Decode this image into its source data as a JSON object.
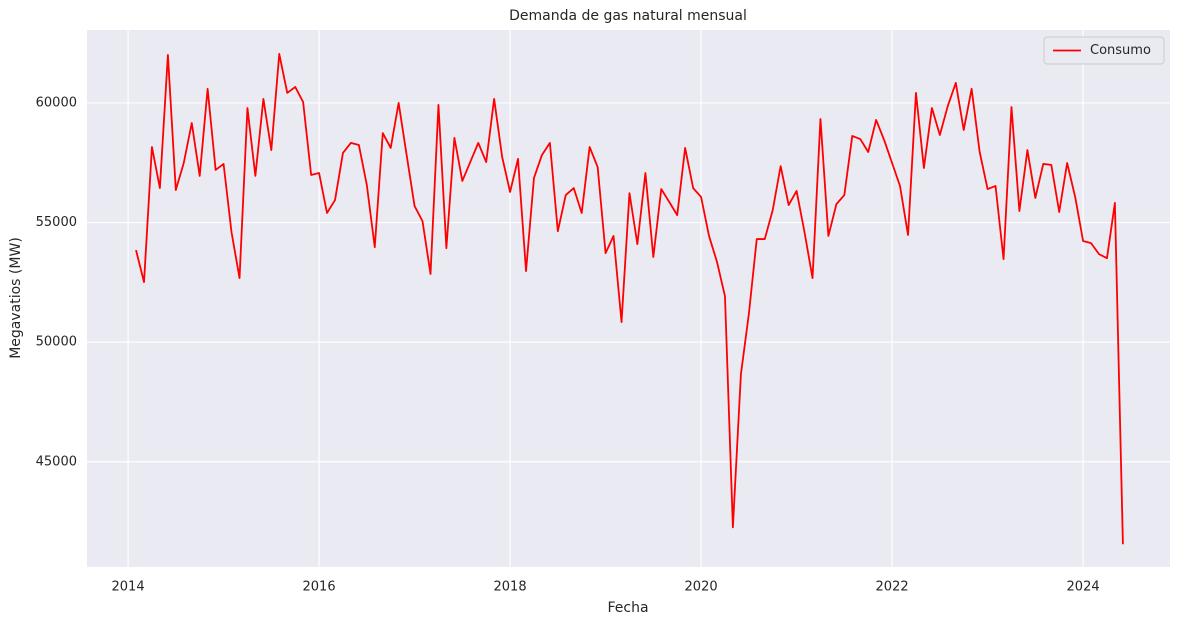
{
  "chart_data": {
    "type": "line",
    "title": "Demanda de gas natural mensual",
    "x_label": "Fecha",
    "y_label": "Megavatios (MW)",
    "x": [
      2014.083,
      2014.167,
      2014.25,
      2014.333,
      2014.417,
      2014.5,
      2014.583,
      2014.667,
      2014.75,
      2014.833,
      2014.917,
      2015.0,
      2015.083,
      2015.167,
      2015.25,
      2015.333,
      2015.417,
      2015.5,
      2015.583,
      2015.667,
      2015.75,
      2015.833,
      2015.917,
      2016.0,
      2016.083,
      2016.167,
      2016.25,
      2016.333,
      2016.417,
      2016.5,
      2016.583,
      2016.667,
      2016.75,
      2016.833,
      2016.917,
      2017.0,
      2017.083,
      2017.167,
      2017.25,
      2017.333,
      2017.417,
      2017.5,
      2017.583,
      2017.667,
      2017.75,
      2017.833,
      2017.917,
      2018.0,
      2018.083,
      2018.167,
      2018.25,
      2018.333,
      2018.417,
      2018.5,
      2018.583,
      2018.667,
      2018.75,
      2018.833,
      2018.917,
      2019.0,
      2019.083,
      2019.167,
      2019.25,
      2019.333,
      2019.417,
      2019.5,
      2019.583,
      2019.667,
      2019.75,
      2019.833,
      2019.917,
      2020.0,
      2020.083,
      2020.167,
      2020.25,
      2020.333,
      2020.417,
      2020.5,
      2020.583,
      2020.667,
      2020.75,
      2020.833,
      2020.917,
      2021.0,
      2021.083,
      2021.167,
      2021.25,
      2021.333,
      2021.417,
      2021.5,
      2021.583,
      2021.667,
      2021.75,
      2021.833,
      2021.917,
      2022.0,
      2022.083,
      2022.167,
      2022.25,
      2022.333,
      2022.417,
      2022.5,
      2022.583,
      2022.667,
      2022.75,
      2022.833,
      2022.917,
      2023.0,
      2023.083,
      2023.167,
      2023.25,
      2023.333,
      2023.417,
      2023.5,
      2023.583,
      2023.667,
      2023.75,
      2023.833,
      2023.917,
      2024.0,
      2024.083,
      2024.167,
      2024.25,
      2024.333,
      2024.417
    ],
    "series": [
      {
        "name": "Consumo",
        "color": "#ff0000",
        "values": [
          53850,
          52510,
          58160,
          56440,
          62010,
          56360,
          57490,
          59160,
          56950,
          60590,
          57200,
          57450,
          54600,
          52680,
          59790,
          56950,
          60170,
          58030,
          62050,
          60420,
          60670,
          60040,
          56990,
          57070,
          55400,
          55940,
          57910,
          58330,
          58240,
          56570,
          53970,
          58740,
          58120,
          60000,
          57820,
          55690,
          55060,
          52850,
          59920,
          53930,
          58540,
          56740,
          57530,
          58330,
          57530,
          60170,
          57740,
          56280,
          57660,
          52970,
          56860,
          57820,
          58330,
          54640,
          56150,
          56440,
          55400,
          58160,
          57320,
          53720,
          54440,
          50840,
          56230,
          54100,
          57070,
          53560,
          56400,
          55860,
          55310,
          58120,
          56440,
          56070,
          54440,
          53350,
          51920,
          42260,
          48660,
          51170,
          54310,
          54310,
          55520,
          57360,
          55730,
          56320,
          54600,
          52680,
          59330,
          54440,
          55770,
          56150,
          58620,
          58490,
          57950,
          59290,
          58450,
          57490,
          56530,
          54480,
          60420,
          57280,
          59790,
          58660,
          59870,
          60840,
          58870,
          60590,
          57950,
          56400,
          56530,
          53470,
          59830,
          55480,
          58030,
          56030,
          57450,
          57410,
          55440,
          57490,
          56070,
          54230,
          54140,
          53680,
          53510,
          55820,
          41550
        ]
      }
    ],
    "xlim": [
      2013.57,
      2024.91
    ],
    "xticks": [
      2014,
      2016,
      2018,
      2020,
      2022,
      2024
    ],
    "ylim": [
      40600,
      63050
    ],
    "yticks": [
      45000,
      50000,
      55000,
      60000
    ],
    "grid": true,
    "legend": "upper right"
  }
}
